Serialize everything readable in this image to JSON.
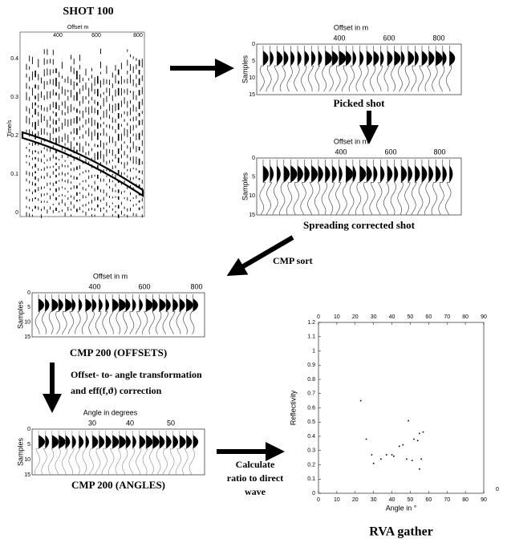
{
  "shot": {
    "title": "SHOT 100",
    "xlabel": "Offset m",
    "xticks": [
      "400",
      "600",
      "800"
    ],
    "ylabel": "Time/s",
    "yticks": [
      "0.4",
      "0.3",
      "0.2",
      "0.1",
      "0"
    ]
  },
  "panels": [
    {
      "caption": "Picked shot",
      "xlabel": "Offset in m",
      "xticks": [
        "400",
        "600",
        "800"
      ],
      "ylabel": "Samples",
      "yticks": [
        "0",
        "5",
        "10",
        "15"
      ]
    },
    {
      "caption": "Spreading corrected shot",
      "xlabel": "Offset in m",
      "xticks": [
        "400",
        "600",
        "800"
      ],
      "ylabel": "Samples",
      "yticks": [
        "0",
        "5",
        "10",
        "15"
      ]
    },
    {
      "caption": "CMP 200 (OFFSETS)",
      "xlabel": "Offset in m",
      "xticks": [
        "400",
        "600",
        "800"
      ],
      "ylabel": "Samples",
      "yticks": [
        "0",
        "5",
        "10",
        "15"
      ]
    },
    {
      "caption": "CMP 200 (ANGLES)",
      "xlabel": "Angle in degrees",
      "xticks": [
        "30",
        "40",
        "50"
      ],
      "ylabel": "Samples",
      "yticks": [
        "0",
        "5",
        "10",
        "15"
      ]
    }
  ],
  "steps": {
    "cmp_sort": "CMP sort",
    "transform": [
      "Offset- to- angle transformation",
      "and eff(f,ϑ) correction"
    ],
    "ratio": [
      "Calculate",
      "ratio to direct",
      "wave"
    ]
  },
  "rva": {
    "title": "RVA gather",
    "xlabel": "Angle in °",
    "ylabel": "Reflectivity",
    "xlim": [
      0,
      90
    ],
    "ylim": [
      0,
      1.2
    ],
    "xticks": [
      0,
      10,
      20,
      30,
      40,
      50,
      60,
      70,
      80,
      90
    ],
    "yticks": [
      0,
      0.1,
      0.2,
      0.3,
      0.4,
      0.5,
      0.6,
      0.7,
      0.8,
      0.9,
      1,
      1.1,
      1.2
    ],
    "corner_label": "0",
    "x": [
      23,
      26,
      29,
      30,
      34,
      37,
      40,
      41,
      44,
      46,
      48,
      49,
      51,
      52,
      54,
      55,
      56,
      57,
      55
    ],
    "y": [
      0.65,
      0.38,
      0.27,
      0.21,
      0.24,
      0.27,
      0.27,
      0.26,
      0.33,
      0.34,
      0.24,
      0.51,
      0.23,
      0.38,
      0.37,
      0.42,
      0.24,
      0.43,
      0.17
    ]
  }
}
